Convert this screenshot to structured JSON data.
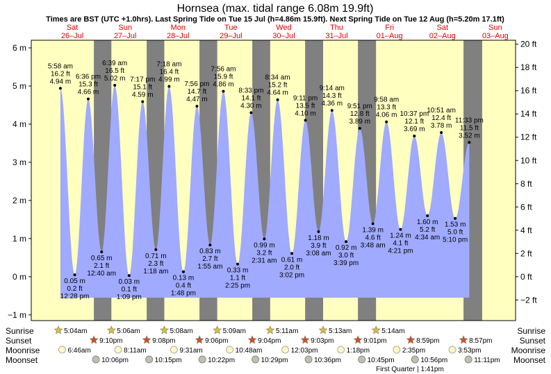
{
  "header": {
    "title": "Hornsea (max. tidal range 6.08m 19.9ft)",
    "subtitle": "Times are BST (UTC +1.0hrs). Last Spring Tide on Tue 15 Jul (h=4.86m 15.9ft). Next Spring Tide on Tue 12 Aug (h=5.20m 17.1ft)"
  },
  "days": [
    {
      "name": "Sat",
      "date": "26–Jul"
    },
    {
      "name": "Sun",
      "date": "27–Jul"
    },
    {
      "name": "Mon",
      "date": "28–Jul"
    },
    {
      "name": "Tue",
      "date": "29–Jul"
    },
    {
      "name": "Wed",
      "date": "30–Jul"
    },
    {
      "name": "Thu",
      "date": "31–Jul"
    },
    {
      "name": "Fri",
      "date": "01–Aug"
    },
    {
      "name": "Sat",
      "date": "02–Aug"
    },
    {
      "name": "Sun",
      "date": "03–Aug"
    }
  ],
  "chart_data": {
    "type": "area",
    "title": "Hornsea (max. tidal range 6.08m 19.9ft)",
    "start_date": "2025-07-26",
    "left_axis_ticks": [
      "−1 m",
      "0 m",
      "1 m",
      "2 m",
      "3 m",
      "4 m",
      "5 m",
      "6 m"
    ],
    "right_axis_ticks": [
      "−2 ft",
      "0 ft",
      "2 ft",
      "4 ft",
      "6 ft",
      "8 ft",
      "10 ft",
      "12 ft",
      "14 ft",
      "16 ft",
      "18 ft",
      "20 ft"
    ],
    "ylim_m": [
      -1.15,
      6.2
    ],
    "tides": [
      {
        "time": "5:58 am",
        "day": 0,
        "height_m": 4.94,
        "labels": [
          "5:58 am",
          "16.2 ft",
          "4.94 m"
        ],
        "type": "high"
      },
      {
        "time": "12:28 pm",
        "day": 0,
        "height_m": 0.05,
        "labels": [
          "0.05 m",
          "0.2 ft",
          "12:28 pm"
        ],
        "type": "low"
      },
      {
        "time": "6:36 pm",
        "day": 0,
        "height_m": 4.66,
        "labels": [
          "6:36 pm",
          "15.3 ft",
          "4.66 m"
        ],
        "type": "high"
      },
      {
        "time": "12:40 am",
        "day": 1,
        "height_m": 0.65,
        "labels": [
          "0.65 m",
          "2.1 ft",
          "12:40 am"
        ],
        "type": "low"
      },
      {
        "time": "6:39 am",
        "day": 1,
        "height_m": 5.02,
        "labels": [
          "6:39 am",
          "16.5 ft",
          "5.02 m"
        ],
        "type": "high"
      },
      {
        "time": "1:09 pm",
        "day": 1,
        "height_m": 0.03,
        "labels": [
          "0.03 m",
          "0.1 ft",
          "1:09 pm"
        ],
        "type": "low"
      },
      {
        "time": "7:17 pm",
        "day": 1,
        "height_m": 4.59,
        "labels": [
          "7:17 pm",
          "15.1 ft",
          "4.59 m"
        ],
        "type": "high"
      },
      {
        "time": "1:18 am",
        "day": 2,
        "height_m": 0.71,
        "labels": [
          "0.71 m",
          "2.3 ft",
          "1:18 am"
        ],
        "type": "low"
      },
      {
        "time": "7:18 am",
        "day": 2,
        "height_m": 4.99,
        "labels": [
          "7:18 am",
          "16.4 ft",
          "4.99 m"
        ],
        "type": "high"
      },
      {
        "time": "1:48 pm",
        "day": 2,
        "height_m": 0.13,
        "labels": [
          "0.13 m",
          "0.4 ft",
          "1:48 pm"
        ],
        "type": "low"
      },
      {
        "time": "7:56 pm",
        "day": 2,
        "height_m": 4.47,
        "labels": [
          "7:56 pm",
          "14.7 ft",
          "4.47 m"
        ],
        "type": "high"
      },
      {
        "time": "1:55 am",
        "day": 3,
        "height_m": 0.83,
        "labels": [
          "0.83 m",
          "2.7 ft",
          "1:55 am"
        ],
        "type": "low"
      },
      {
        "time": "7:56 am",
        "day": 3,
        "height_m": 4.86,
        "labels": [
          "7:56 am",
          "15.9 ft",
          "4.86 m"
        ],
        "type": "high"
      },
      {
        "time": "2:25 pm",
        "day": 3,
        "height_m": 0.33,
        "labels": [
          "0.33 m",
          "1.1 ft",
          "2:25 pm"
        ],
        "type": "low"
      },
      {
        "time": "8:33 pm",
        "day": 3,
        "height_m": 4.3,
        "labels": [
          "8:33 pm",
          "14.1 ft",
          "4.30 m"
        ],
        "type": "high"
      },
      {
        "time": "2:31 am",
        "day": 4,
        "height_m": 0.99,
        "labels": [
          "0.99 m",
          "3.2 ft",
          "2:31 am"
        ],
        "type": "low"
      },
      {
        "time": "8:34 am",
        "day": 4,
        "height_m": 4.64,
        "labels": [
          "8:34 am",
          "15.2 ft",
          "4.64 m"
        ],
        "type": "high"
      },
      {
        "time": "3:02 pm",
        "day": 4,
        "height_m": 0.61,
        "labels": [
          "0.61 m",
          "2.0 ft",
          "3:02 pm"
        ],
        "type": "low"
      },
      {
        "time": "9:11 pm",
        "day": 4,
        "height_m": 4.1,
        "labels": [
          "9:11 pm",
          "13.5 ft",
          "4.10 m"
        ],
        "type": "high"
      },
      {
        "time": "3:08 am",
        "day": 5,
        "height_m": 1.18,
        "labels": [
          "1.18 m",
          "3.9 ft",
          "3:08 am"
        ],
        "type": "low"
      },
      {
        "time": "9:14 am",
        "day": 5,
        "height_m": 4.36,
        "labels": [
          "9:14 am",
          "14.3 ft",
          "4.36 m"
        ],
        "type": "high"
      },
      {
        "time": "3:39 pm",
        "day": 5,
        "height_m": 0.92,
        "labels": [
          "0.92 m",
          "3.0 ft",
          "3:39 pm"
        ],
        "type": "low"
      },
      {
        "time": "9:51 pm",
        "day": 5,
        "height_m": 3.89,
        "labels": [
          "9:51 pm",
          "12.8 ft",
          "3.89 m"
        ],
        "type": "high"
      },
      {
        "time": "3:48 am",
        "day": 6,
        "height_m": 1.39,
        "labels": [
          "1.39 m",
          "4.6 ft",
          "3:48 am"
        ],
        "type": "low"
      },
      {
        "time": "9:58 am",
        "day": 6,
        "height_m": 4.06,
        "labels": [
          "9:58 am",
          "13.3 ft",
          "4.06 m"
        ],
        "type": "high"
      },
      {
        "time": "4:21 pm",
        "day": 6,
        "height_m": 1.24,
        "labels": [
          "1.24 m",
          "4.1 ft",
          "4:21 pm"
        ],
        "type": "low"
      },
      {
        "time": "10:37 pm",
        "day": 6,
        "height_m": 3.69,
        "labels": [
          "10:37 pm",
          "12.1 ft",
          "3.69 m"
        ],
        "type": "high"
      },
      {
        "time": "4:34 am",
        "day": 7,
        "height_m": 1.6,
        "labels": [
          "1.60 m",
          "5.2 ft",
          "4:34 am"
        ],
        "type": "low"
      },
      {
        "time": "10:51 am",
        "day": 7,
        "height_m": 3.78,
        "labels": [
          "10:51 am",
          "12.4 ft",
          "3.78 m"
        ],
        "type": "high"
      },
      {
        "time": "5:10 pm",
        "day": 7,
        "height_m": 1.53,
        "labels": [
          "1.53 m",
          "5.0 ft",
          "5:10 pm"
        ],
        "type": "low"
      },
      {
        "time": "11:33 pm",
        "day": 7,
        "height_m": 3.52,
        "labels": [
          "11:33 pm",
          "11.5 ft",
          "3.52 m"
        ],
        "type": "high"
      }
    ],
    "sun": [
      {
        "rise": "5:04am",
        "set": "9:10pm"
      },
      {
        "rise": "5:06am",
        "set": "9:08pm"
      },
      {
        "rise": "5:08am",
        "set": "9:06pm"
      },
      {
        "rise": "5:09am",
        "set": "9:04pm"
      },
      {
        "rise": "5:11am",
        "set": "9:03pm"
      },
      {
        "rise": "5:13am",
        "set": "9:01pm"
      },
      {
        "rise": "5:14am",
        "set": "8:59pm"
      },
      {
        "rise": "",
        "set": "8:57pm"
      }
    ],
    "moonrise": [
      "6:46am",
      "8:11am",
      "9:31am",
      "10:48am",
      "12:03pm",
      "1:18pm",
      "2:35pm",
      "3:53pm"
    ],
    "moonset": [
      "10:06pm",
      "10:15pm",
      "10:22pm",
      "10:29pm",
      "10:36pm",
      "10:45pm",
      "10:56pm",
      "11:11pm"
    ],
    "moon_phase_note": "First Quarter | 1:41pm",
    "colors": {
      "tide": "#a0aaff",
      "day": "#ffffc0",
      "night": "#808080",
      "day_label": "#e00000"
    }
  },
  "rows": {
    "sunrise": "Sunrise",
    "sunset": "Sunset",
    "moonrise": "Moonrise",
    "moonset": "Moonset"
  }
}
